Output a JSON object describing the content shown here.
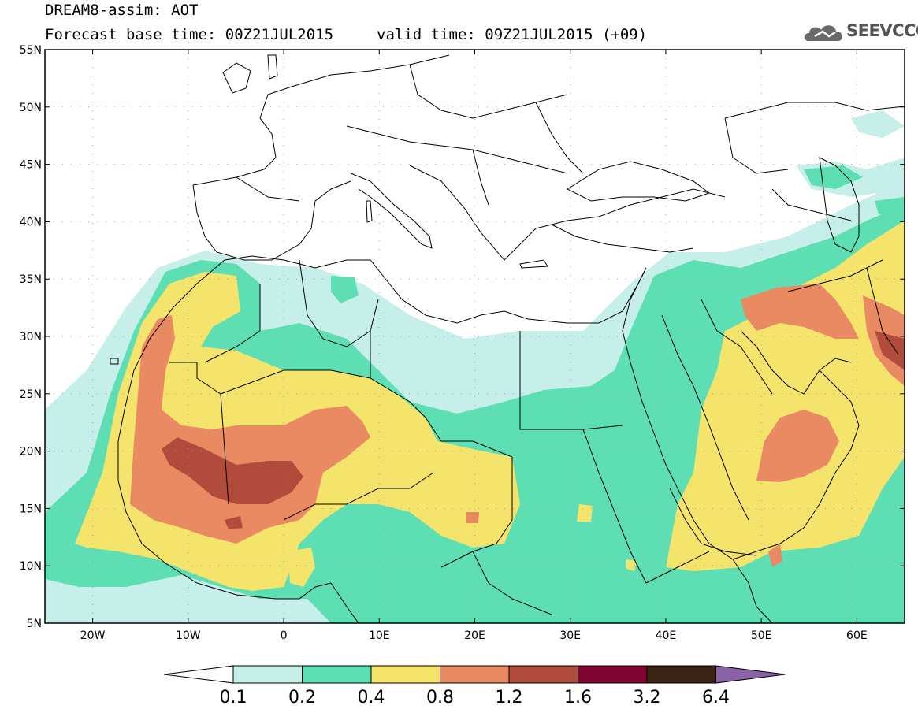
{
  "header": {
    "title": "DREAM8-assim: AOT",
    "base_time": "Forecast base time: 00Z21JUL2015",
    "valid_time": "valid time: 09Z21JUL2015 (+09)",
    "logo_text": "SEEVCCC"
  },
  "map": {
    "lat_ticks": [
      "55N",
      "50N",
      "45N",
      "40N",
      "35N",
      "30N",
      "25N",
      "20N",
      "15N",
      "10N",
      "5N"
    ],
    "lon_ticks": [
      "20W",
      "10W",
      "0",
      "10E",
      "20E",
      "30E",
      "40E",
      "50E",
      "60E"
    ],
    "lon_range": [
      -25,
      65
    ],
    "lat_range": [
      5,
      55
    ]
  },
  "legend": {
    "labels": [
      "0.1",
      "0.2",
      "0.4",
      "0.8",
      "1.2",
      "1.6",
      "3.2",
      "6.4"
    ],
    "colors": [
      "#ffffff",
      "#c5efe8",
      "#5ddeb3",
      "#f5e46c",
      "#e98a62",
      "#b14b3c",
      "#80042f",
      "#3c2414",
      "#8a62a8"
    ]
  }
}
